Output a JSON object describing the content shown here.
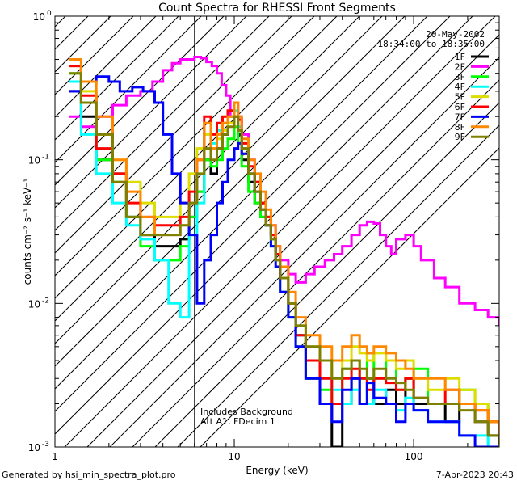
{
  "footer": {
    "left": "Generated by hsi_min_spectra_plot.pro",
    "right": "7-Apr-2023 20:43"
  },
  "chart_data": {
    "type": "line",
    "title": "Count Spectra for RHESSI Front Segments",
    "xlabel": "Energy (keV)",
    "ylabel": "counts cm⁻² s⁻¹ keV⁻¹",
    "xscale": "log",
    "yscale": "log",
    "xlim": [
      1,
      300
    ],
    "ylim": [
      0.001,
      1
    ],
    "x_ticks": [
      {
        "value": 1,
        "label": "1"
      },
      {
        "value": 10,
        "label": "10"
      },
      {
        "value": 100,
        "label": "100"
      }
    ],
    "y_ticks": [
      {
        "value": 0.001,
        "base": "10",
        "exp": "-3"
      },
      {
        "value": 0.01,
        "base": "10",
        "exp": "-2"
      },
      {
        "value": 0.1,
        "base": "10",
        "exp": "-1"
      },
      {
        "value": 1,
        "base": "10",
        "exp": "0"
      }
    ],
    "date": "20-May-2002",
    "time_range": "18:34:00 to 18:35:00",
    "annotations": [
      "Includes Background",
      "Att A1, FDecim 1"
    ],
    "attenuator_energy_keV": 6,
    "legend_position": "top-right",
    "series": [
      {
        "name": "1F",
        "color": "#000000",
        "x": [
          1.2,
          1.4,
          1.7,
          2.1,
          2.5,
          3.0,
          3.6,
          4.3,
          5.0,
          5.6,
          6.2,
          6.8,
          7.4,
          8.0,
          8.6,
          9.2,
          10.0,
          10.5,
          11.0,
          12.0,
          13.0,
          14.0,
          15.0,
          16.0,
          17.0,
          18.0,
          20.0,
          22.0,
          25.0,
          30.0,
          35.0,
          40.0,
          45.0,
          50.0,
          55.0,
          60.0,
          70.0,
          80.0,
          90.0,
          100.0,
          120.0,
          150.0,
          180.0,
          220.0,
          260.0,
          300.0
        ],
        "y": [
          0.3,
          0.2,
          0.1,
          0.08,
          0.04,
          0.03,
          0.025,
          0.025,
          0.028,
          0.04,
          0.06,
          0.1,
          0.08,
          0.12,
          0.15,
          0.18,
          0.2,
          0.15,
          0.1,
          0.07,
          0.05,
          0.04,
          0.035,
          0.03,
          0.02,
          0.015,
          0.01,
          0.006,
          0.003,
          0.002,
          0.001,
          0.002,
          0.003,
          0.002,
          0.003,
          0.002,
          0.0025,
          0.002,
          0.003,
          0.002,
          0.002,
          0.0015,
          0.002,
          0.0015,
          0.0012,
          0.001
        ]
      },
      {
        "name": "2F",
        "color": "#ff00ff",
        "x": [
          1.2,
          1.4,
          1.7,
          2.1,
          2.5,
          3.0,
          3.5,
          4.0,
          4.5,
          5.0,
          5.5,
          6.0,
          6.5,
          7.0,
          7.5,
          8.0,
          8.5,
          9.0,
          9.5,
          10.0,
          11.0,
          12.0,
          13.0,
          14.0,
          15.0,
          16.0,
          17.0,
          18.0,
          20.0,
          22.0,
          25.0,
          28.0,
          32.0,
          36.0,
          40.0,
          45.0,
          50.0,
          55.0,
          60.0,
          65.0,
          70.0,
          75.0,
          80.0,
          90.0,
          100.0,
          110.0,
          130.0,
          150.0,
          180.0,
          220.0,
          260.0,
          300.0
        ],
        "y": [
          0.2,
          0.17,
          0.2,
          0.24,
          0.28,
          0.3,
          0.35,
          0.42,
          0.47,
          0.5,
          0.5,
          0.52,
          0.51,
          0.48,
          0.45,
          0.4,
          0.33,
          0.28,
          0.2,
          0.2,
          0.15,
          0.1,
          0.07,
          0.05,
          0.04,
          0.035,
          0.025,
          0.02,
          0.016,
          0.014,
          0.016,
          0.018,
          0.02,
          0.022,
          0.025,
          0.03,
          0.035,
          0.037,
          0.036,
          0.03,
          0.025,
          0.022,
          0.028,
          0.03,
          0.025,
          0.02,
          0.015,
          0.013,
          0.01,
          0.009,
          0.008,
          0.007
        ]
      },
      {
        "name": "3F",
        "color": "#00ff00",
        "x": [
          1.2,
          1.4,
          1.7,
          2.1,
          2.5,
          3.0,
          3.6,
          4.3,
          5.0,
          5.6,
          6.2,
          6.8,
          7.4,
          8.0,
          8.6,
          9.2,
          10.0,
          10.5,
          11.0,
          12.0,
          13.0,
          14.0,
          15.0,
          16.0,
          17.0,
          18.0,
          20.0,
          22.0,
          25.0,
          30.0,
          35.0,
          40.0,
          45.0,
          50.0,
          55.0,
          60.0,
          70.0,
          80.0,
          90.0,
          100.0,
          120.0,
          150.0,
          180.0,
          220.0,
          260.0,
          300.0
        ],
        "y": [
          0.4,
          0.25,
          0.1,
          0.07,
          0.04,
          0.025,
          0.02,
          0.02,
          0.025,
          0.04,
          0.06,
          0.1,
          0.09,
          0.1,
          0.12,
          0.14,
          0.17,
          0.13,
          0.09,
          0.06,
          0.05,
          0.04,
          0.035,
          0.025,
          0.02,
          0.012,
          0.008,
          0.005,
          0.003,
          0.0025,
          0.002,
          0.0035,
          0.004,
          0.003,
          0.0045,
          0.003,
          0.004,
          0.0025,
          0.003,
          0.0035,
          0.002,
          0.002,
          0.0025,
          0.002,
          0.0015,
          0.0012
        ]
      },
      {
        "name": "4F",
        "color": "#00ffff",
        "x": [
          1.2,
          1.4,
          1.7,
          2.1,
          2.5,
          3.0,
          3.6,
          4.3,
          5.0,
          5.6,
          6.2,
          6.8,
          7.4,
          8.0,
          8.6,
          9.2,
          10.0,
          10.5,
          11.0,
          12.0,
          13.0,
          14.0,
          15.0,
          16.0,
          17.0,
          18.0,
          20.0,
          22.0,
          25.0,
          30.0,
          35.0,
          40.0,
          45.0,
          50.0,
          55.0,
          60.0,
          70.0,
          80.0,
          90.0,
          100.0,
          120.0,
          150.0,
          180.0,
          220.0,
          260.0,
          300.0
        ],
        "y": [
          0.35,
          0.15,
          0.08,
          0.05,
          0.035,
          0.028,
          0.02,
          0.01,
          0.008,
          0.03,
          0.05,
          0.15,
          0.13,
          0.16,
          0.18,
          0.2,
          0.22,
          0.17,
          0.12,
          0.08,
          0.06,
          0.045,
          0.035,
          0.028,
          0.02,
          0.015,
          0.01,
          0.006,
          0.004,
          0.003,
          0.0025,
          0.002,
          0.0025,
          0.003,
          0.002,
          0.0025,
          0.002,
          0.0018,
          0.0022,
          0.0018,
          0.0015,
          0.0015,
          0.0012,
          0.0012,
          0.001,
          0.001
        ]
      },
      {
        "name": "5F",
        "color": "#dddd00",
        "x": [
          1.2,
          1.4,
          1.7,
          2.1,
          2.5,
          3.0,
          3.6,
          4.3,
          5.0,
          5.6,
          6.2,
          6.8,
          7.4,
          8.0,
          8.6,
          9.2,
          10.0,
          10.5,
          11.0,
          12.0,
          13.0,
          14.0,
          15.0,
          16.0,
          17.0,
          18.0,
          20.0,
          22.0,
          25.0,
          30.0,
          35.0,
          40.0,
          45.0,
          50.0,
          55.0,
          60.0,
          70.0,
          80.0,
          90.0,
          100.0,
          120.0,
          150.0,
          180.0,
          220.0,
          260.0,
          300.0
        ],
        "y": [
          0.45,
          0.3,
          0.15,
          0.1,
          0.07,
          0.05,
          0.04,
          0.04,
          0.05,
          0.08,
          0.12,
          0.15,
          0.12,
          0.14,
          0.16,
          0.18,
          0.2,
          0.16,
          0.11,
          0.08,
          0.06,
          0.05,
          0.04,
          0.03,
          0.02,
          0.015,
          0.01,
          0.007,
          0.005,
          0.004,
          0.003,
          0.004,
          0.005,
          0.0045,
          0.004,
          0.0045,
          0.004,
          0.0035,
          0.004,
          0.003,
          0.0025,
          0.003,
          0.0025,
          0.002,
          0.0015,
          0.0012
        ]
      },
      {
        "name": "6F",
        "color": "#ff0000",
        "x": [
          1.2,
          1.4,
          1.7,
          2.1,
          2.5,
          3.0,
          3.6,
          4.3,
          5.0,
          5.6,
          6.2,
          6.8,
          7.4,
          8.0,
          8.6,
          9.2,
          10.0,
          10.5,
          11.0,
          12.0,
          13.0,
          14.0,
          15.0,
          16.0,
          17.0,
          18.0,
          20.0,
          22.0,
          25.0,
          30.0,
          35.0,
          40.0,
          45.0,
          50.0,
          55.0,
          60.0,
          70.0,
          80.0,
          90.0,
          100.0,
          120.0,
          150.0,
          180.0,
          220.0,
          260.0,
          300.0
        ],
        "y": [
          0.45,
          0.28,
          0.12,
          0.08,
          0.05,
          0.04,
          0.035,
          0.035,
          0.04,
          0.06,
          0.1,
          0.2,
          0.15,
          0.18,
          0.2,
          0.22,
          0.25,
          0.19,
          0.13,
          0.09,
          0.07,
          0.05,
          0.04,
          0.03,
          0.022,
          0.015,
          0.01,
          0.006,
          0.004,
          0.003,
          0.002,
          0.003,
          0.0035,
          0.003,
          0.0025,
          0.003,
          0.0028,
          0.0025,
          0.003,
          0.0022,
          0.002,
          0.0025,
          0.002,
          0.0018,
          0.0015,
          0.0012
        ]
      },
      {
        "name": "7F",
        "color": "#0000ff",
        "x": [
          1.2,
          1.4,
          1.7,
          2.0,
          2.3,
          2.7,
          3.1,
          3.6,
          4.0,
          4.5,
          5.0,
          5.6,
          6.2,
          6.8,
          7.4,
          8.0,
          8.6,
          9.2,
          10.0,
          10.5,
          11.0,
          12.0,
          13.0,
          14.0,
          15.0,
          16.0,
          17.0,
          18.0,
          20.0,
          22.0,
          25.0,
          30.0,
          35.0,
          40.0,
          45.0,
          50.0,
          55.0,
          60.0,
          70.0,
          80.0,
          90.0,
          100.0,
          120.0,
          150.0,
          180.0,
          220.0,
          260.0,
          300.0
        ],
        "y": [
          0.3,
          0.35,
          0.38,
          0.35,
          0.3,
          0.32,
          0.3,
          0.25,
          0.15,
          0.08,
          0.05,
          0.03,
          0.01,
          0.02,
          0.03,
          0.05,
          0.07,
          0.1,
          0.12,
          0.13,
          0.11,
          0.08,
          0.06,
          0.045,
          0.035,
          0.025,
          0.018,
          0.012,
          0.008,
          0.005,
          0.003,
          0.002,
          0.0015,
          0.0025,
          0.003,
          0.002,
          0.0028,
          0.0022,
          0.002,
          0.0015,
          0.002,
          0.0018,
          0.0015,
          0.0015,
          0.0012,
          0.001,
          0.001,
          0.001
        ]
      },
      {
        "name": "8F",
        "color": "#ff8800",
        "x": [
          1.2,
          1.4,
          1.7,
          2.1,
          2.5,
          3.0,
          3.6,
          4.3,
          5.0,
          5.6,
          6.2,
          6.8,
          7.4,
          8.0,
          8.6,
          9.2,
          10.0,
          10.5,
          11.0,
          12.0,
          13.0,
          14.0,
          15.0,
          16.0,
          17.0,
          18.0,
          20.0,
          22.0,
          25.0,
          30.0,
          35.0,
          40.0,
          45.0,
          50.0,
          55.0,
          60.0,
          70.0,
          80.0,
          90.0,
          100.0,
          120.0,
          150.0,
          180.0,
          220.0,
          260.0,
          300.0
        ],
        "y": [
          0.5,
          0.35,
          0.2,
          0.1,
          0.06,
          0.04,
          0.03,
          0.03,
          0.035,
          0.05,
          0.1,
          0.18,
          0.12,
          0.15,
          0.18,
          0.2,
          0.25,
          0.2,
          0.14,
          0.1,
          0.08,
          0.06,
          0.045,
          0.035,
          0.025,
          0.018,
          0.012,
          0.008,
          0.006,
          0.005,
          0.004,
          0.005,
          0.006,
          0.005,
          0.0045,
          0.005,
          0.0045,
          0.004,
          0.0035,
          0.003,
          0.003,
          0.0025,
          0.002,
          0.0018,
          0.0015,
          0.0012
        ]
      },
      {
        "name": "9F",
        "color": "#808000",
        "x": [
          1.2,
          1.4,
          1.7,
          2.1,
          2.5,
          3.0,
          3.6,
          4.3,
          5.0,
          5.6,
          6.2,
          6.8,
          7.4,
          8.0,
          8.6,
          9.2,
          10.0,
          10.5,
          11.0,
          12.0,
          13.0,
          14.0,
          15.0,
          16.0,
          17.0,
          18.0,
          20.0,
          22.0,
          25.0,
          30.0,
          35.0,
          40.0,
          45.0,
          50.0,
          55.0,
          60.0,
          70.0,
          80.0,
          90.0,
          100.0,
          120.0,
          150.0,
          180.0,
          220.0,
          260.0,
          300.0
        ],
        "y": [
          0.4,
          0.25,
          0.15,
          0.07,
          0.04,
          0.03,
          0.03,
          0.03,
          0.035,
          0.05,
          0.08,
          0.12,
          0.1,
          0.12,
          0.15,
          0.17,
          0.2,
          0.16,
          0.12,
          0.08,
          0.06,
          0.045,
          0.035,
          0.028,
          0.02,
          0.015,
          0.01,
          0.007,
          0.005,
          0.004,
          0.003,
          0.0035,
          0.004,
          0.0035,
          0.003,
          0.0035,
          0.003,
          0.0028,
          0.0025,
          0.0022,
          0.002,
          0.002,
          0.0018,
          0.0015,
          0.0012,
          0.001
        ]
      }
    ]
  }
}
